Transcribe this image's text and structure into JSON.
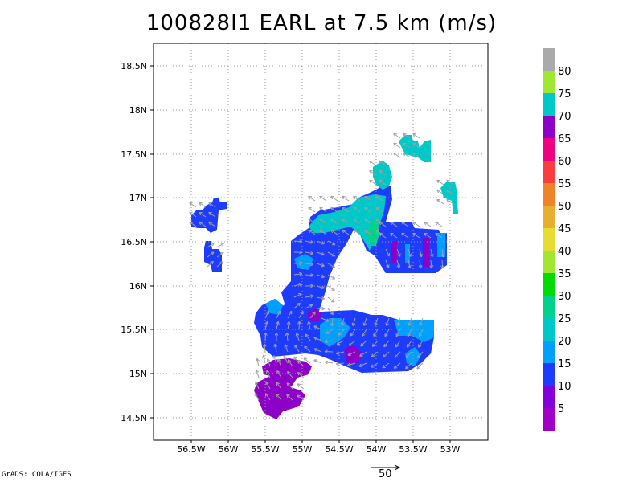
{
  "title": "100828I1 EARL at 7.5 km (m/s)",
  "credit": "GrADS: COLA/IGES",
  "reference_vector_label": "50",
  "map": {
    "lon_range": [
      -57,
      -52.5
    ],
    "lat_range": [
      14.25,
      18.75
    ],
    "lon_ticks": [
      "56.5W",
      "56W",
      "55.5W",
      "55W",
      "54.5W",
      "54W",
      "53.5W",
      "53W"
    ],
    "lat_ticks": [
      "18.5N",
      "18N",
      "17.5N",
      "17N",
      "16.5N",
      "16N",
      "15.5N",
      "15N",
      "14.5N"
    ],
    "grid": true
  },
  "colorbar": {
    "labels": [
      "5",
      "10",
      "15",
      "20",
      "25",
      "30",
      "35",
      "40",
      "45",
      "50",
      "55",
      "60",
      "65",
      "70",
      "75",
      "80"
    ],
    "colors": [
      "#a000c8",
      "#8200dc",
      "#1e3cff",
      "#00a0ff",
      "#00c8c8",
      "#00d28c",
      "#00dc00",
      "#a0e632",
      "#e6dc32",
      "#e6af2d",
      "#f08228",
      "#fa3c3c",
      "#f00082",
      "#8c00c8",
      "#00c8c8",
      "#a0e632",
      "#aaaaaa"
    ]
  },
  "colors": {
    "wind_10_15": "#1e3cff",
    "wind_15_20": "#00a0ff",
    "wind_20_25": "#00c8c8",
    "wind_5_10": "#8c00c8",
    "arrows": "#a0a0a0"
  }
}
